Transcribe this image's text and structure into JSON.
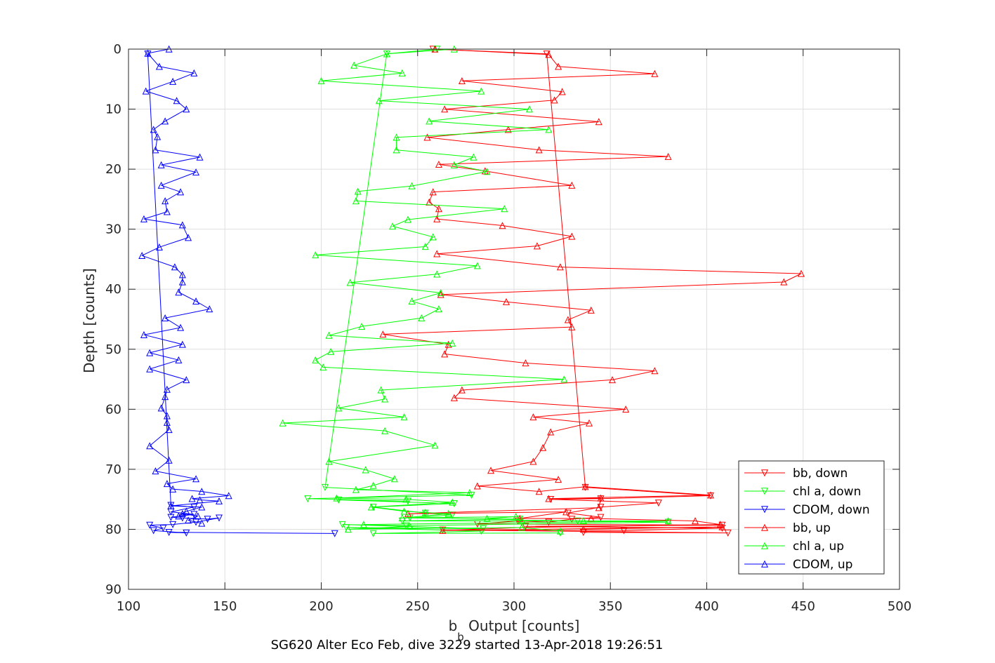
{
  "chart_data": {
    "type": "line",
    "xlabel": {
      "main": "b",
      "sub": "b",
      "rest": " Output [counts]"
    },
    "caption": "SG620 Alter Eco Feb, dive 3229 started 13-Apr-2018 19:26:51",
    "ylabel": "Depth [counts]",
    "xlim": [
      100,
      500
    ],
    "ylim": [
      0,
      90
    ],
    "y_reversed": true,
    "grid": true,
    "legend_position": "bottom-right",
    "xticks": [
      "100",
      "150",
      "200",
      "250",
      "300",
      "350",
      "400",
      "450",
      "500"
    ],
    "yticks": [
      "0",
      "10",
      "20",
      "30",
      "40",
      "50",
      "60",
      "70",
      "80",
      "90"
    ],
    "series": [
      {
        "name": "bb, down",
        "color": "#ff0000",
        "marker": "triangle-down",
        "points": [
          [
            258,
            0
          ],
          [
            317,
            0.8
          ],
          [
            337,
            73
          ],
          [
            402,
            74.4
          ],
          [
            345,
            74.9
          ],
          [
            319,
            75
          ],
          [
            375,
            75.6
          ],
          [
            345,
            76.3
          ],
          [
            328,
            77.3
          ],
          [
            345,
            78
          ],
          [
            330,
            78.3
          ],
          [
            318,
            78.8
          ],
          [
            302,
            78.6
          ],
          [
            281,
            79.1
          ],
          [
            408,
            79.3
          ],
          [
            306,
            79.5
          ],
          [
            408,
            79.8
          ],
          [
            357,
            80.2
          ],
          [
            263,
            80.1
          ],
          [
            411,
            80.6
          ],
          [
            336,
            80.5
          ]
        ]
      },
      {
        "name": "chl a, down",
        "color": "#00ff00",
        "marker": "triangle-down",
        "points": [
          [
            260,
            0
          ],
          [
            234,
            0.8
          ],
          [
            202,
            73
          ],
          [
            278,
            74.3
          ],
          [
            193,
            74.9
          ],
          [
            245,
            75.3
          ],
          [
            209,
            75.1
          ],
          [
            269,
            75.7
          ],
          [
            227,
            76.3
          ],
          [
            254,
            77.3
          ],
          [
            268,
            77.6
          ],
          [
            246,
            78.1
          ],
          [
            303,
            78.3
          ],
          [
            242,
            78.6
          ],
          [
            333,
            78.6
          ],
          [
            380,
            78.8
          ],
          [
            244,
            79.4
          ],
          [
            211,
            79.2
          ],
          [
            284,
            79.9
          ],
          [
            213,
            79.7
          ],
          [
            283,
            80.3
          ],
          [
            227,
            80.7
          ],
          [
            324,
            80.6
          ]
        ]
      },
      {
        "name": "CDOM, down",
        "color": "#0000ff",
        "marker": "triangle-down",
        "points": [
          [
            110,
            0.8
          ],
          [
            122,
            76
          ],
          [
            134,
            76.3
          ],
          [
            122,
            77.1
          ],
          [
            134,
            77.5
          ],
          [
            122,
            78
          ],
          [
            128,
            78.1
          ],
          [
            141,
            78.3
          ],
          [
            147,
            78.1
          ],
          [
            135,
            78.8
          ],
          [
            123,
            79.2
          ],
          [
            111,
            79.3
          ],
          [
            118,
            79.8
          ],
          [
            113,
            80.2
          ],
          [
            130,
            80.6
          ],
          [
            121,
            80.5
          ],
          [
            207,
            80.7
          ]
        ]
      },
      {
        "name": "bb, up",
        "color": "#ff0000",
        "marker": "triangle-up",
        "points": [
          [
            259,
            0
          ],
          [
            318,
            0.9
          ],
          [
            323,
            2.9
          ],
          [
            373,
            4.1
          ],
          [
            273,
            5.3
          ],
          [
            325,
            7.1
          ],
          [
            321,
            8.5
          ],
          [
            264,
            10
          ],
          [
            344,
            12.1
          ],
          [
            297,
            13.4
          ],
          [
            255,
            14.7
          ],
          [
            313,
            16.8
          ],
          [
            380,
            17.9
          ],
          [
            261,
            19.2
          ],
          [
            285,
            20.3
          ],
          [
            330,
            22.7
          ],
          [
            258,
            23.8
          ],
          [
            256,
            25.5
          ],
          [
            261,
            26.6
          ],
          [
            260,
            28.3
          ],
          [
            294,
            29.4
          ],
          [
            330,
            31.2
          ],
          [
            312,
            32.8
          ],
          [
            260,
            34.1
          ],
          [
            324,
            36.3
          ],
          [
            449,
            37.4
          ],
          [
            440,
            38.8
          ],
          [
            262,
            40.9
          ],
          [
            296,
            42.1
          ],
          [
            340,
            43.5
          ],
          [
            328,
            45.1
          ],
          [
            330,
            46.3
          ],
          [
            232,
            47.5
          ],
          [
            266,
            49.2
          ],
          [
            264,
            50.8
          ],
          [
            306,
            52.3
          ],
          [
            373,
            53.6
          ],
          [
            351,
            55.1
          ],
          [
            273,
            56.8
          ],
          [
            269,
            58.1
          ],
          [
            358,
            60
          ],
          [
            310,
            61.3
          ],
          [
            339,
            62.3
          ],
          [
            319,
            63.8
          ],
          [
            315,
            66.4
          ],
          [
            310,
            68.7
          ],
          [
            288,
            70.2
          ],
          [
            323,
            71.7
          ],
          [
            281,
            72.8
          ],
          [
            313,
            73.7
          ],
          [
            337,
            72.9
          ],
          [
            402,
            74.3
          ],
          [
            318,
            74.9
          ],
          [
            345,
            74.8
          ],
          [
            344,
            76.4
          ],
          [
            245,
            77.4
          ],
          [
            327,
            77.1
          ],
          [
            303,
            78.2
          ],
          [
            340,
            78.2
          ],
          [
            394,
            78.6
          ],
          [
            407,
            79.2
          ],
          [
            304,
            79.7
          ],
          [
            263,
            80.2
          ],
          [
            408,
            79.6
          ],
          [
            336,
            80
          ]
        ]
      },
      {
        "name": "chl a, up",
        "color": "#00ff00",
        "marker": "triangle-up",
        "points": [
          [
            269,
            0
          ],
          [
            234,
            0.8
          ],
          [
            217,
            2.7
          ],
          [
            242,
            4
          ],
          [
            200,
            5.3
          ],
          [
            283,
            7
          ],
          [
            230,
            8.6
          ],
          [
            308,
            10
          ],
          [
            256,
            12
          ],
          [
            318,
            13.4
          ],
          [
            239,
            14.7
          ],
          [
            239,
            16.8
          ],
          [
            279,
            18
          ],
          [
            269,
            19.3
          ],
          [
            286,
            20.4
          ],
          [
            247,
            22.8
          ],
          [
            219,
            23.7
          ],
          [
            218,
            25.3
          ],
          [
            295,
            26.6
          ],
          [
            245,
            28.4
          ],
          [
            237,
            29.5
          ],
          [
            258,
            31.3
          ],
          [
            254,
            32.9
          ],
          [
            197,
            34.3
          ],
          [
            281,
            36.1
          ],
          [
            260,
            37.5
          ],
          [
            215,
            38.9
          ],
          [
            262,
            40.6
          ],
          [
            247,
            42
          ],
          [
            261,
            43.3
          ],
          [
            252,
            44.8
          ],
          [
            221,
            46.2
          ],
          [
            204,
            47.7
          ],
          [
            268,
            49
          ],
          [
            205,
            50.4
          ],
          [
            197,
            51.8
          ],
          [
            201,
            53
          ],
          [
            326,
            55
          ],
          [
            231,
            56.8
          ],
          [
            233,
            58.3
          ],
          [
            209,
            59.8
          ],
          [
            243,
            61.3
          ],
          [
            180,
            62.3
          ],
          [
            233,
            63.6
          ],
          [
            259,
            66
          ],
          [
            204,
            68.7
          ],
          [
            223,
            70.1
          ],
          [
            238,
            71.6
          ],
          [
            227,
            72.7
          ],
          [
            218,
            73.4
          ],
          [
            277,
            73.9
          ],
          [
            208,
            74.8
          ],
          [
            244,
            75
          ],
          [
            268,
            75.5
          ],
          [
            226,
            76.3
          ],
          [
            243,
            77
          ],
          [
            254,
            77.2
          ],
          [
            266,
            77.4
          ],
          [
            242,
            78.1
          ],
          [
            301,
            77.9
          ],
          [
            286,
            78.2
          ],
          [
            304,
            78.5
          ],
          [
            336,
            78.6
          ],
          [
            380,
            78.6
          ],
          [
            222,
            79.2
          ],
          [
            246,
            79.5
          ],
          [
            214,
            80
          ],
          [
            304,
            79.7
          ],
          [
            324,
            80.3
          ]
        ]
      },
      {
        "name": "CDOM, up",
        "color": "#0000ff",
        "marker": "triangle-up",
        "points": [
          [
            121,
            0
          ],
          [
            110,
            0.7
          ],
          [
            116,
            2.9
          ],
          [
            134,
            4
          ],
          [
            123,
            5.4
          ],
          [
            109,
            7
          ],
          [
            125,
            8.6
          ],
          [
            130,
            10
          ],
          [
            119,
            12
          ],
          [
            113,
            13.4
          ],
          [
            115,
            14.6
          ],
          [
            114,
            16.8
          ],
          [
            137,
            18
          ],
          [
            117,
            19.3
          ],
          [
            135,
            20.5
          ],
          [
            117,
            22.7
          ],
          [
            127,
            23.8
          ],
          [
            119,
            25.3
          ],
          [
            120,
            27.1
          ],
          [
            108,
            28.3
          ],
          [
            128,
            29.3
          ],
          [
            131,
            31.4
          ],
          [
            116,
            33
          ],
          [
            107,
            34.4
          ],
          [
            124,
            36.3
          ],
          [
            128,
            37.6
          ],
          [
            128,
            38.8
          ],
          [
            126,
            40.5
          ],
          [
            135,
            42
          ],
          [
            142,
            43.3
          ],
          [
            119,
            44.8
          ],
          [
            127,
            46.4
          ],
          [
            108,
            47.6
          ],
          [
            128,
            49.2
          ],
          [
            111,
            50.6
          ],
          [
            126,
            51.8
          ],
          [
            111,
            53.3
          ],
          [
            130,
            55.1
          ],
          [
            120,
            56.7
          ],
          [
            119,
            57.9
          ],
          [
            117,
            59.8
          ],
          [
            120,
            61.1
          ],
          [
            120,
            62.2
          ],
          [
            121,
            63.4
          ],
          [
            111,
            66.1
          ],
          [
            121,
            68.5
          ],
          [
            114,
            70.3
          ],
          [
            135,
            71.6
          ],
          [
            120,
            72.4
          ],
          [
            123,
            73.3
          ],
          [
            138,
            73.7
          ],
          [
            152,
            74.4
          ],
          [
            133,
            74.9
          ],
          [
            137,
            75.1
          ],
          [
            147,
            75.3
          ],
          [
            122,
            76.1
          ],
          [
            138,
            76.3
          ],
          [
            130,
            77
          ],
          [
            126,
            77.8
          ],
          [
            128,
            77.4
          ],
          [
            136,
            77.8
          ],
          [
            131,
            78.5
          ],
          [
            138,
            79
          ]
        ]
      }
    ]
  }
}
